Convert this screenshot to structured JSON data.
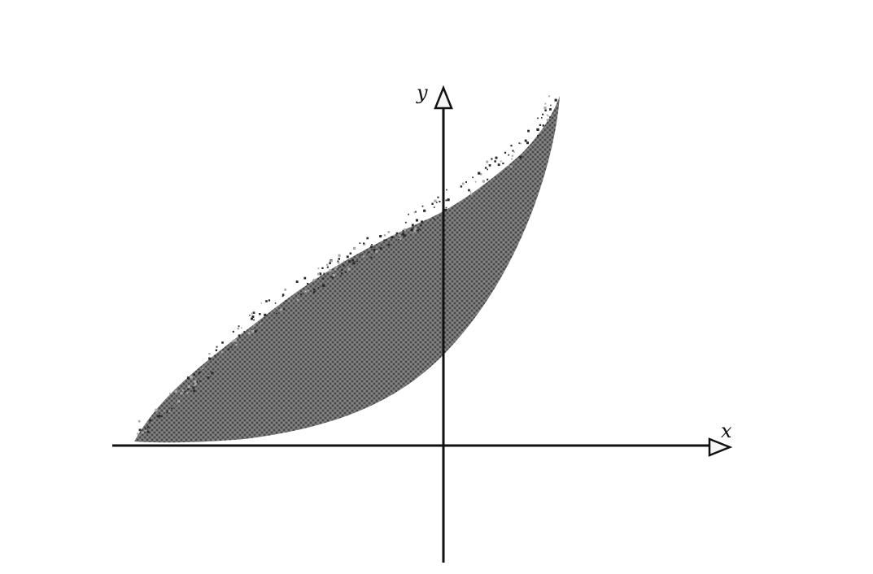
{
  "figure": {
    "x_axis_label": "x",
    "y_axis_label": "y",
    "colors": {
      "background": "#ffffff",
      "axis": "#111111",
      "region_fill": "#6f6f6f",
      "stipple_dark": "#2a2a2a",
      "stipple_light": "#a8a8a8",
      "arrow_head_fill": "#f4f4f4"
    },
    "region": {
      "description_shape": "shaded region above exponential-like lower curve, with irregular stippled upper boundary",
      "lower_curve_type": "exponential",
      "texture": "stipple"
    }
  }
}
